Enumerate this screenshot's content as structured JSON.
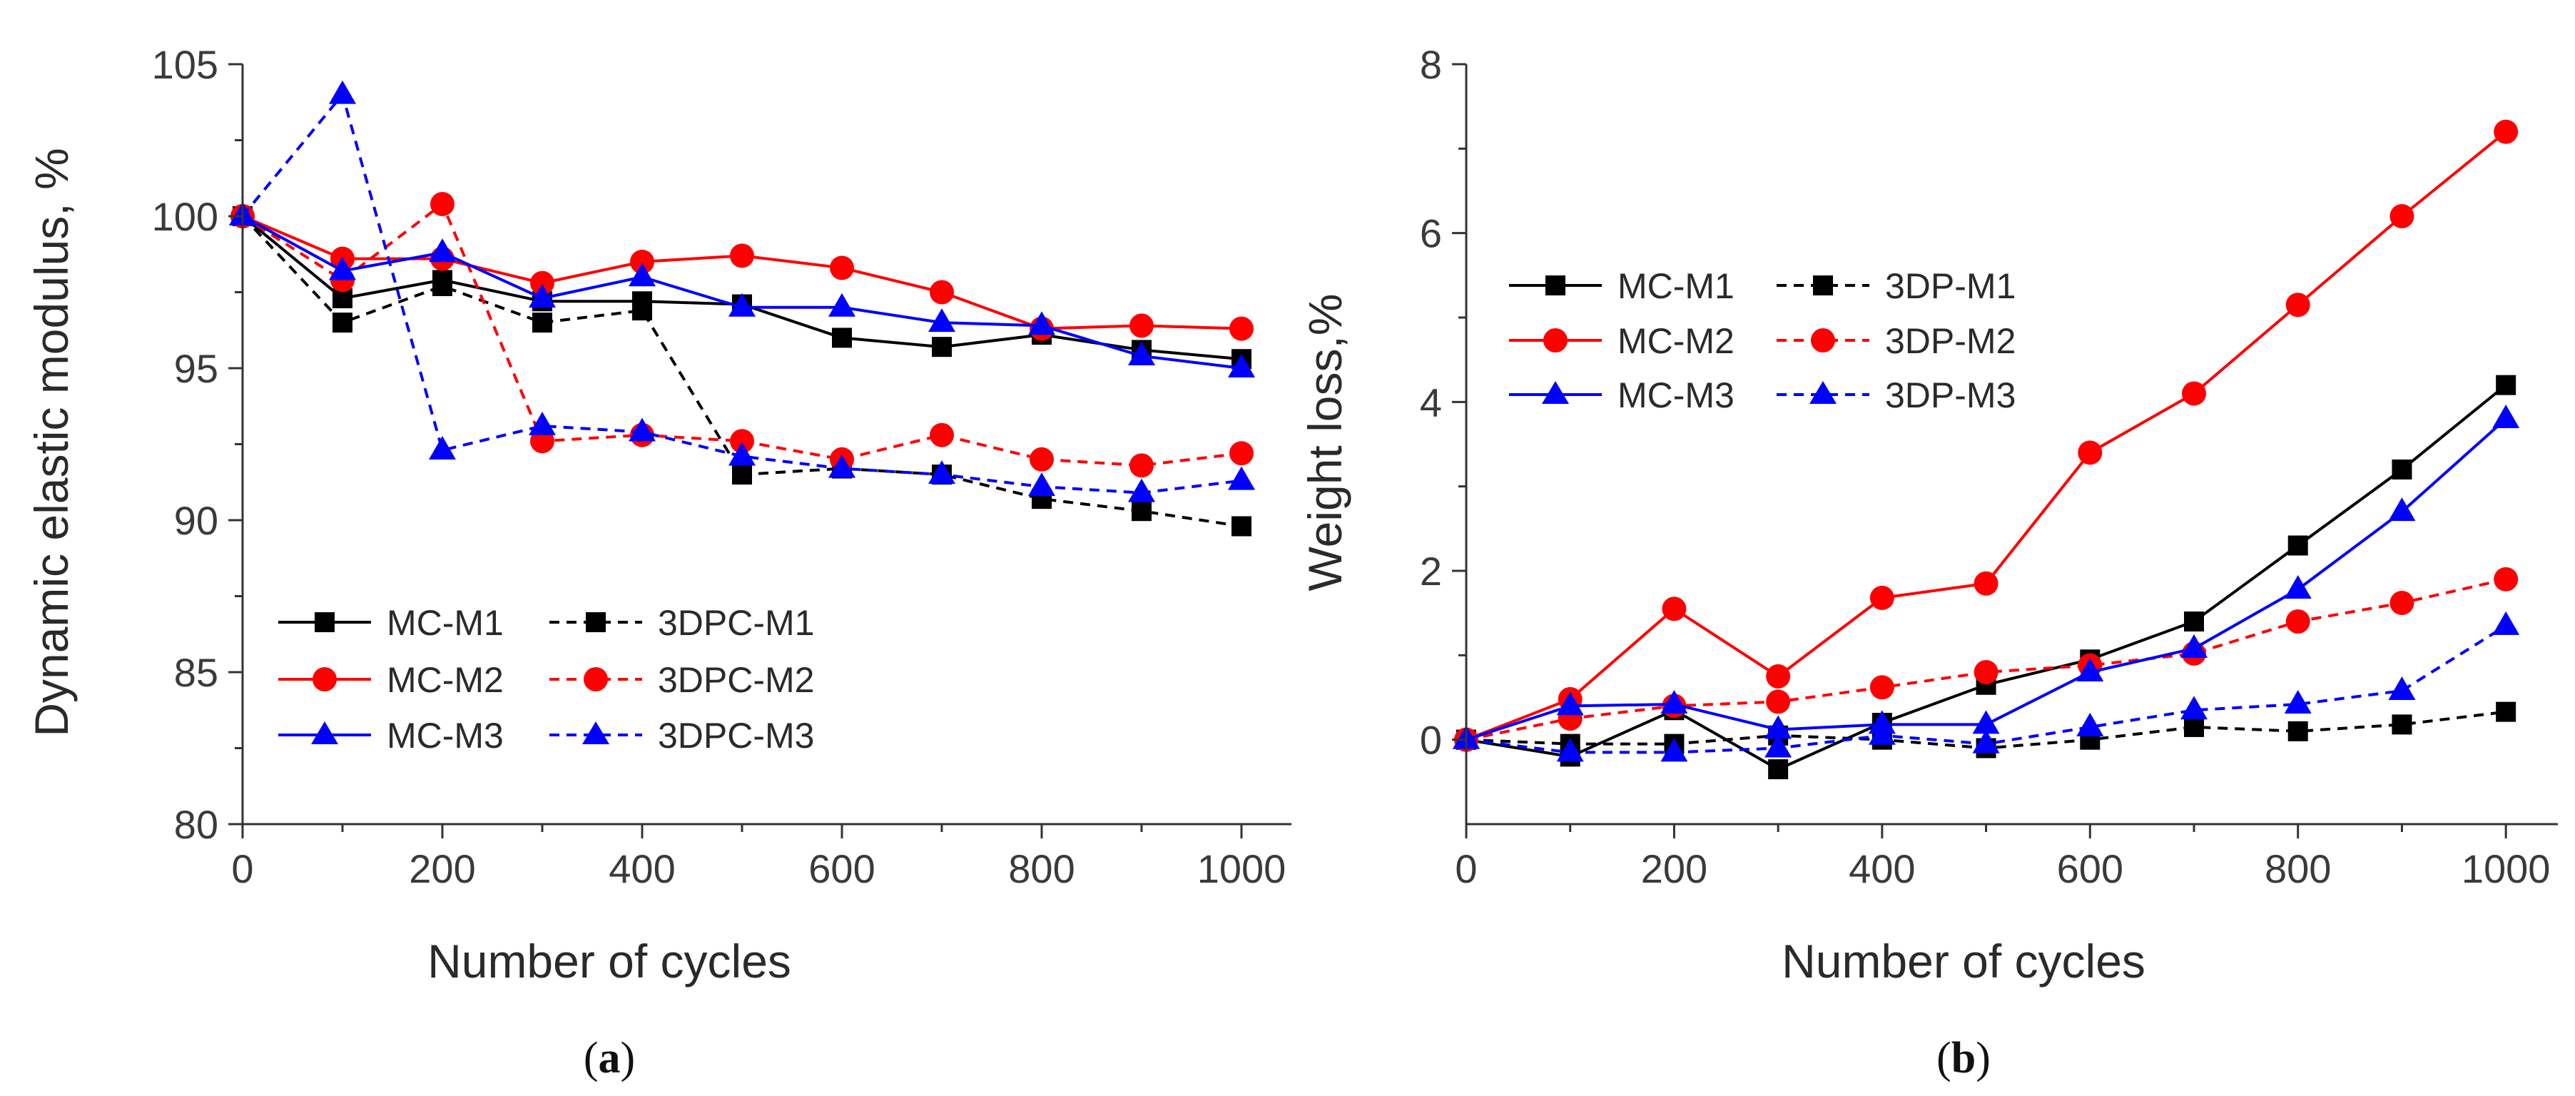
{
  "chart_data": [
    {
      "type": "line",
      "panel_label": {
        "open": "(",
        "letter": "a",
        "close": ")"
      },
      "xlabel": "Number of cycles",
      "ylabel": "Dynamic elastic modulus, %",
      "xlim": [
        0,
        1050
      ],
      "ylim": [
        80,
        105
      ],
      "xticks": [
        0,
        200,
        400,
        600,
        800,
        1000
      ],
      "yticks": [
        80,
        85,
        90,
        95,
        100,
        105
      ],
      "x": [
        0,
        100,
        200,
        300,
        400,
        500,
        600,
        700,
        800,
        900,
        1000
      ],
      "grid": false,
      "legend_position": "bottom-left",
      "series": [
        {
          "name": "MC-M1",
          "color": "#000000",
          "dashed": false,
          "marker": "square",
          "values": [
            100,
            97.3,
            97.9,
            97.2,
            97.2,
            97.1,
            96.0,
            95.7,
            96.1,
            95.6,
            95.3
          ]
        },
        {
          "name": "3DPC-M1",
          "color": "#000000",
          "dashed": true,
          "marker": "square",
          "values": [
            100,
            96.5,
            97.7,
            96.5,
            96.9,
            91.5,
            91.7,
            91.5,
            90.7,
            90.3,
            89.8
          ]
        },
        {
          "name": "MC-M2",
          "color": "#ff0000",
          "dashed": false,
          "marker": "circle",
          "values": [
            100,
            98.6,
            98.6,
            97.8,
            98.5,
            98.7,
            98.3,
            97.5,
            96.3,
            96.4,
            96.3
          ]
        },
        {
          "name": "3DPC-M2",
          "color": "#ff0000",
          "dashed": true,
          "marker": "circle",
          "values": [
            100,
            97.9,
            100.4,
            92.6,
            92.8,
            92.6,
            92.0,
            92.8,
            92.0,
            91.8,
            92.2
          ]
        },
        {
          "name": "MC-M3",
          "color": "#0000ff",
          "dashed": false,
          "marker": "triangle",
          "values": [
            100,
            98.2,
            98.8,
            97.3,
            98.0,
            97.0,
            97.0,
            96.5,
            96.4,
            95.4,
            95.0
          ]
        },
        {
          "name": "3DPC-M3",
          "color": "#0000ff",
          "dashed": true,
          "marker": "triangle",
          "values": [
            100,
            104.0,
            92.3,
            93.1,
            92.9,
            92.1,
            91.7,
            91.5,
            91.1,
            90.9,
            91.3
          ]
        }
      ]
    },
    {
      "type": "line",
      "panel_label": {
        "open": "(",
        "letter": "b",
        "close": ")"
      },
      "xlabel": "Number of cycles",
      "ylabel": "Weight loss,%",
      "xlim": [
        0,
        1050
      ],
      "ylim": [
        -1,
        8
      ],
      "xticks": [
        0,
        200,
        400,
        600,
        800,
        1000
      ],
      "yticks": [
        0,
        2,
        4,
        6,
        8
      ],
      "x": [
        0,
        100,
        200,
        300,
        400,
        500,
        600,
        700,
        800,
        900,
        1000
      ],
      "grid": false,
      "legend_position": "top-left",
      "series": [
        {
          "name": "MC-M1",
          "color": "#000000",
          "dashed": false,
          "marker": "square",
          "values": [
            0,
            -0.2,
            0.35,
            -0.35,
            0.2,
            0.65,
            0.95,
            1.4,
            2.3,
            3.2,
            4.2
          ]
        },
        {
          "name": "3DP-M1",
          "color": "#000000",
          "dashed": true,
          "marker": "square",
          "values": [
            0,
            -0.05,
            -0.05,
            0.05,
            0.0,
            -0.1,
            0.0,
            0.15,
            0.1,
            0.18,
            0.33
          ]
        },
        {
          "name": "MC-M2",
          "color": "#ff0000",
          "dashed": false,
          "marker": "circle",
          "values": [
            0,
            0.48,
            1.55,
            0.75,
            1.68,
            1.85,
            3.4,
            4.1,
            5.15,
            6.2,
            7.2
          ]
        },
        {
          "name": "3DP-M2",
          "color": "#ff0000",
          "dashed": true,
          "marker": "circle",
          "values": [
            0,
            0.25,
            0.4,
            0.45,
            0.62,
            0.8,
            0.88,
            1.02,
            1.4,
            1.62,
            1.9
          ]
        },
        {
          "name": "MC-M3",
          "color": "#0000ff",
          "dashed": false,
          "marker": "triangle",
          "values": [
            0,
            0.4,
            0.42,
            0.12,
            0.18,
            0.18,
            0.8,
            1.08,
            1.78,
            2.7,
            3.8
          ]
        },
        {
          "name": "3DP-M3",
          "color": "#0000ff",
          "dashed": true,
          "marker": "triangle",
          "values": [
            0,
            -0.15,
            -0.15,
            -0.1,
            0.05,
            -0.05,
            0.15,
            0.35,
            0.42,
            0.58,
            1.35
          ]
        }
      ]
    }
  ]
}
